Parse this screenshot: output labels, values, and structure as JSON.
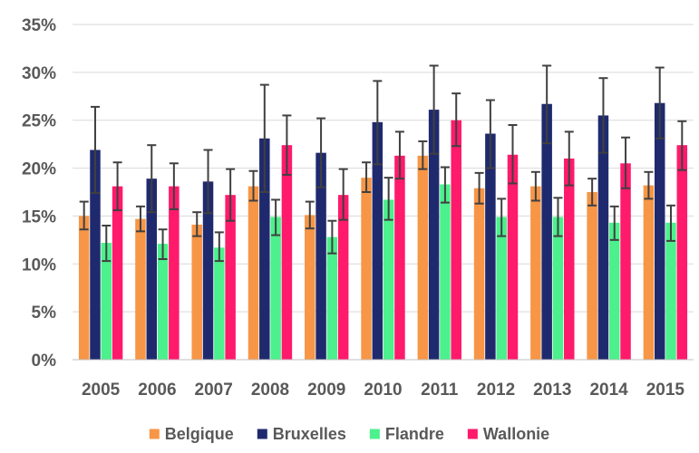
{
  "chart_data": {
    "type": "bar",
    "title": "",
    "xlabel": "",
    "ylabel": "",
    "categories": [
      "2005",
      "2006",
      "2007",
      "2008",
      "2009",
      "2010",
      "2011",
      "2012",
      "2013",
      "2014",
      "2015"
    ],
    "ylim": [
      0,
      35
    ],
    "y_ticks": [
      {
        "value": 0,
        "label": "0%"
      },
      {
        "value": 5,
        "label": "5%"
      },
      {
        "value": 10,
        "label": "10%"
      },
      {
        "value": 15,
        "label": "15%"
      },
      {
        "value": 20,
        "label": "20%"
      },
      {
        "value": 25,
        "label": "25%"
      },
      {
        "value": 30,
        "label": "30%"
      },
      {
        "value": 35,
        "label": "35%"
      }
    ],
    "grid": true,
    "legend_position": "bottom",
    "error_bars": true,
    "series": [
      {
        "name": "Belgique",
        "color": "#F79646",
        "values": [
          15.0,
          14.7,
          14.1,
          18.1,
          15.1,
          19.0,
          21.3,
          17.9,
          18.1,
          17.5,
          18.2
        ],
        "error_low": [
          13.6,
          13.4,
          12.9,
          16.6,
          13.7,
          17.5,
          19.9,
          16.3,
          16.6,
          16.1,
          16.8
        ],
        "error_high": [
          16.5,
          16.0,
          15.4,
          19.7,
          16.5,
          20.6,
          22.8,
          19.5,
          19.6,
          18.9,
          19.6
        ]
      },
      {
        "name": "Bruxelles",
        "color": "#1F2A6E",
        "values": [
          21.9,
          18.9,
          18.6,
          23.1,
          21.6,
          24.8,
          26.1,
          23.6,
          26.7,
          25.5,
          26.8
        ],
        "error_low": [
          17.4,
          15.4,
          15.3,
          17.5,
          18.0,
          20.4,
          21.5,
          20.0,
          22.6,
          21.6,
          23.1
        ],
        "error_high": [
          26.4,
          22.4,
          21.9,
          28.7,
          25.2,
          29.1,
          30.7,
          27.1,
          30.7,
          29.4,
          30.5
        ]
      },
      {
        "name": "Flandre",
        "color": "#4CF08C",
        "values": [
          12.2,
          12.1,
          11.7,
          14.9,
          12.8,
          16.7,
          18.3,
          14.9,
          14.9,
          14.3,
          14.3
        ],
        "error_low": [
          10.3,
          10.5,
          10.3,
          13.0,
          11.1,
          14.6,
          16.4,
          12.9,
          12.9,
          12.5,
          12.4
        ],
        "error_high": [
          14.0,
          13.6,
          13.3,
          16.7,
          14.5,
          19.0,
          20.1,
          16.8,
          16.9,
          16.0,
          16.1
        ]
      },
      {
        "name": "Wallonie",
        "color": "#FF1A6B",
        "values": [
          18.1,
          18.1,
          17.2,
          22.4,
          17.2,
          21.3,
          25.0,
          21.4,
          21.0,
          20.5,
          22.4
        ],
        "error_low": [
          15.6,
          15.7,
          14.5,
          19.3,
          14.6,
          18.9,
          22.3,
          18.4,
          18.2,
          17.9,
          19.8
        ],
        "error_high": [
          20.6,
          20.5,
          19.9,
          25.5,
          19.9,
          23.8,
          27.8,
          24.5,
          23.8,
          23.2,
          24.9
        ]
      }
    ]
  }
}
